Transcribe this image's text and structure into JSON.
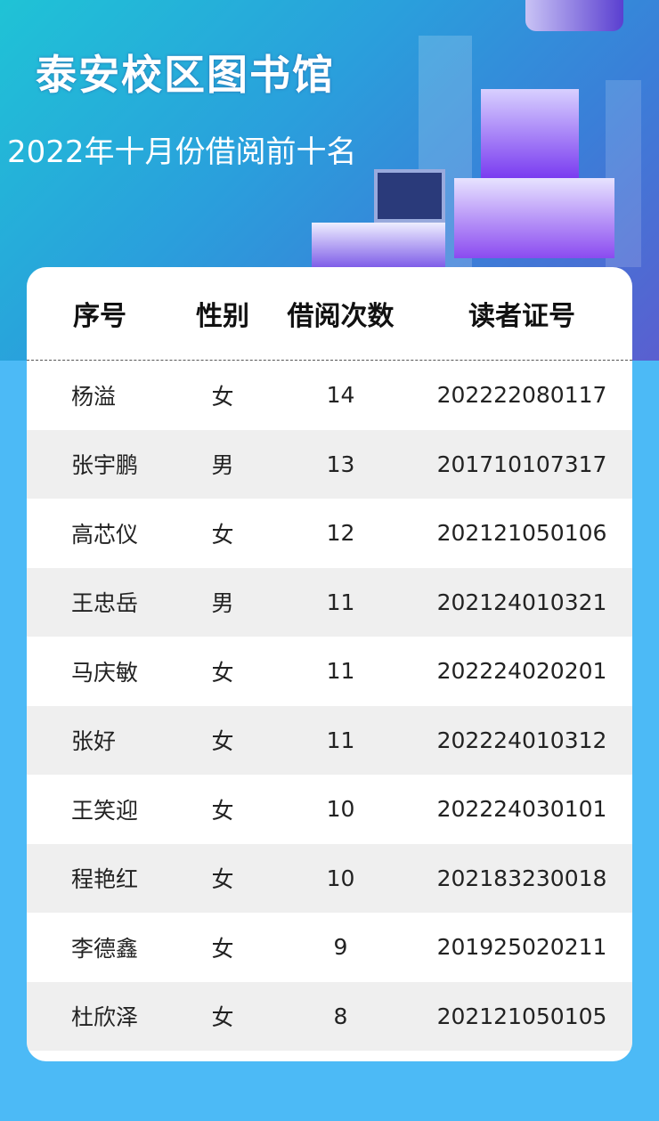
{
  "header": {
    "title": "泰安校区图书馆",
    "subtitle": "2022年十月份借阅前十名"
  },
  "table": {
    "columns": [
      "序号",
      "性别",
      "借阅次数",
      "读者证号"
    ],
    "rows": [
      {
        "name": "杨溢",
        "gender": "女",
        "count": "14",
        "card": "202222080117"
      },
      {
        "name": "张宇鹏",
        "gender": "男",
        "count": "13",
        "card": "201710107317"
      },
      {
        "name": "高芯仪",
        "gender": "女",
        "count": "12",
        "card": "202121050106"
      },
      {
        "name": "王忠岳",
        "gender": "男",
        "count": "11",
        "card": "202124010321"
      },
      {
        "name": "马庆敏",
        "gender": "女",
        "count": "11",
        "card": "202224020201"
      },
      {
        "name": "张好",
        "gender": "女",
        "count": "11",
        "card": "202224010312"
      },
      {
        "name": "王笑迎",
        "gender": "女",
        "count": "10",
        "card": "202224030101"
      },
      {
        "name": "程艳红",
        "gender": "女",
        "count": "10",
        "card": "202183230018"
      },
      {
        "name": "李德鑫",
        "gender": "女",
        "count": "9",
        "card": "201925020211"
      },
      {
        "name": "杜欣泽",
        "gender": "女",
        "count": "8",
        "card": "202121050105"
      }
    ]
  },
  "colors": {
    "hero_start": "#1fc3d6",
    "hero_end": "#5a5fd0",
    "background": "#4cbaf6",
    "alt_row": "#efefef"
  }
}
